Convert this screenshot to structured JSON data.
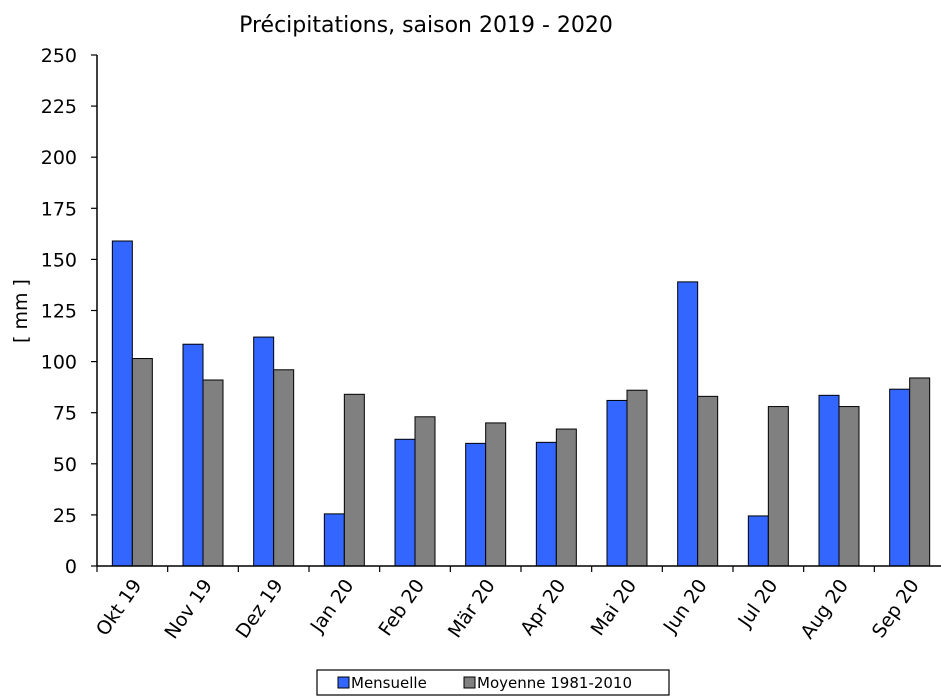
{
  "chart_data": {
    "type": "bar",
    "title": "Précipitations, saison 2019 - 2020",
    "ylabel": "[ mm ]",
    "xlabel": "",
    "ylim": [
      0,
      250
    ],
    "yticks": [
      0,
      25,
      50,
      75,
      100,
      125,
      150,
      175,
      200,
      225,
      250
    ],
    "categories": [
      "Okt 19",
      "Nov 19",
      "Dez 19",
      "Jan 20",
      "Feb 20",
      "Mär 20",
      "Apr 20",
      "Mai 20",
      "Jun 20",
      "Jul 20",
      "Aug 20",
      "Sep 20"
    ],
    "series": [
      {
        "name": "Mensuelle",
        "color": "#3366FF",
        "values": [
          159,
          108.5,
          112,
          25.5,
          62,
          60,
          60.5,
          81,
          139,
          24.5,
          83.5,
          86.5
        ]
      },
      {
        "name": "Moyenne 1981-2010",
        "color": "#808080",
        "values": [
          101.5,
          91,
          96,
          84,
          73,
          70,
          67,
          86,
          83,
          78,
          78,
          92
        ]
      }
    ],
    "grid": false,
    "legend": "bottom"
  }
}
